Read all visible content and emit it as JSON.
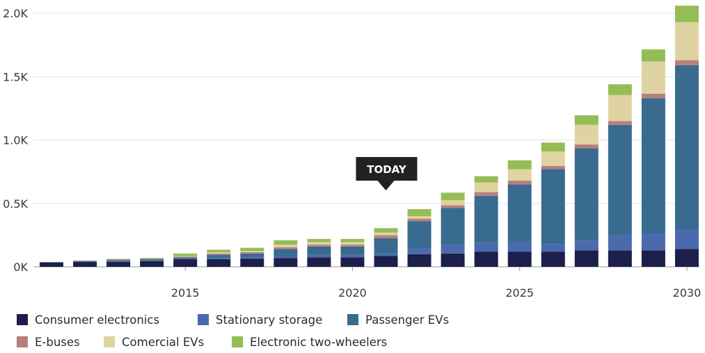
{
  "chart_data": {
    "type": "bar",
    "stacked": true,
    "years": [
      2011,
      2012,
      2013,
      2014,
      2015,
      2016,
      2017,
      2018,
      2019,
      2020,
      2021,
      2022,
      2023,
      2024,
      2025,
      2026,
      2027,
      2028,
      2029,
      2030
    ],
    "x_tick_labels": [
      "2015",
      "2020",
      "2025",
      "2030"
    ],
    "y_tick_labels": [
      "0K",
      "0.5K",
      "1.0K",
      "1.5K",
      "2.0K"
    ],
    "y_ticks": [
      0,
      500,
      1000,
      1500,
      2000
    ],
    "ylim": [
      0,
      2050
    ],
    "grid": true,
    "legend_position": "bottom",
    "annotation": {
      "text": "TODAY",
      "year": 2021
    },
    "series": [
      {
        "name": "Consumer electronics",
        "color": "#1c1f4a",
        "values": [
          35,
          38,
          40,
          45,
          60,
          60,
          65,
          70,
          75,
          75,
          85,
          100,
          105,
          120,
          120,
          120,
          130,
          130,
          130,
          140
        ]
      },
      {
        "name": "Stationary storage",
        "color": "#4a6aad",
        "values": [
          2,
          3,
          3,
          5,
          5,
          10,
          10,
          15,
          20,
          20,
          20,
          45,
          70,
          70,
          80,
          60,
          80,
          120,
          130,
          150
        ]
      },
      {
        "name": "Passenger EVs",
        "color": "#386b8f",
        "values": [
          0,
          5,
          10,
          10,
          10,
          25,
          30,
          55,
          65,
          65,
          120,
          215,
          290,
          370,
          450,
          590,
          725,
          870,
          1070,
          1300
        ]
      },
      {
        "name": "E-buses",
        "color": "#b87f7d",
        "values": [
          0,
          2,
          5,
          5,
          5,
          10,
          10,
          15,
          15,
          15,
          25,
          20,
          20,
          30,
          30,
          25,
          30,
          30,
          35,
          40
        ]
      },
      {
        "name": "Comercial EVs",
        "color": "#dfd3a2",
        "values": [
          0,
          0,
          0,
          0,
          5,
          10,
          10,
          20,
          20,
          20,
          20,
          20,
          40,
          75,
          90,
          115,
          155,
          205,
          255,
          300
        ]
      },
      {
        "name": "Electronic two-wheelers",
        "color": "#95bd55",
        "values": [
          2,
          2,
          5,
          5,
          20,
          20,
          25,
          35,
          25,
          25,
          35,
          55,
          60,
          50,
          70,
          70,
          75,
          85,
          95,
          130
        ]
      }
    ]
  }
}
